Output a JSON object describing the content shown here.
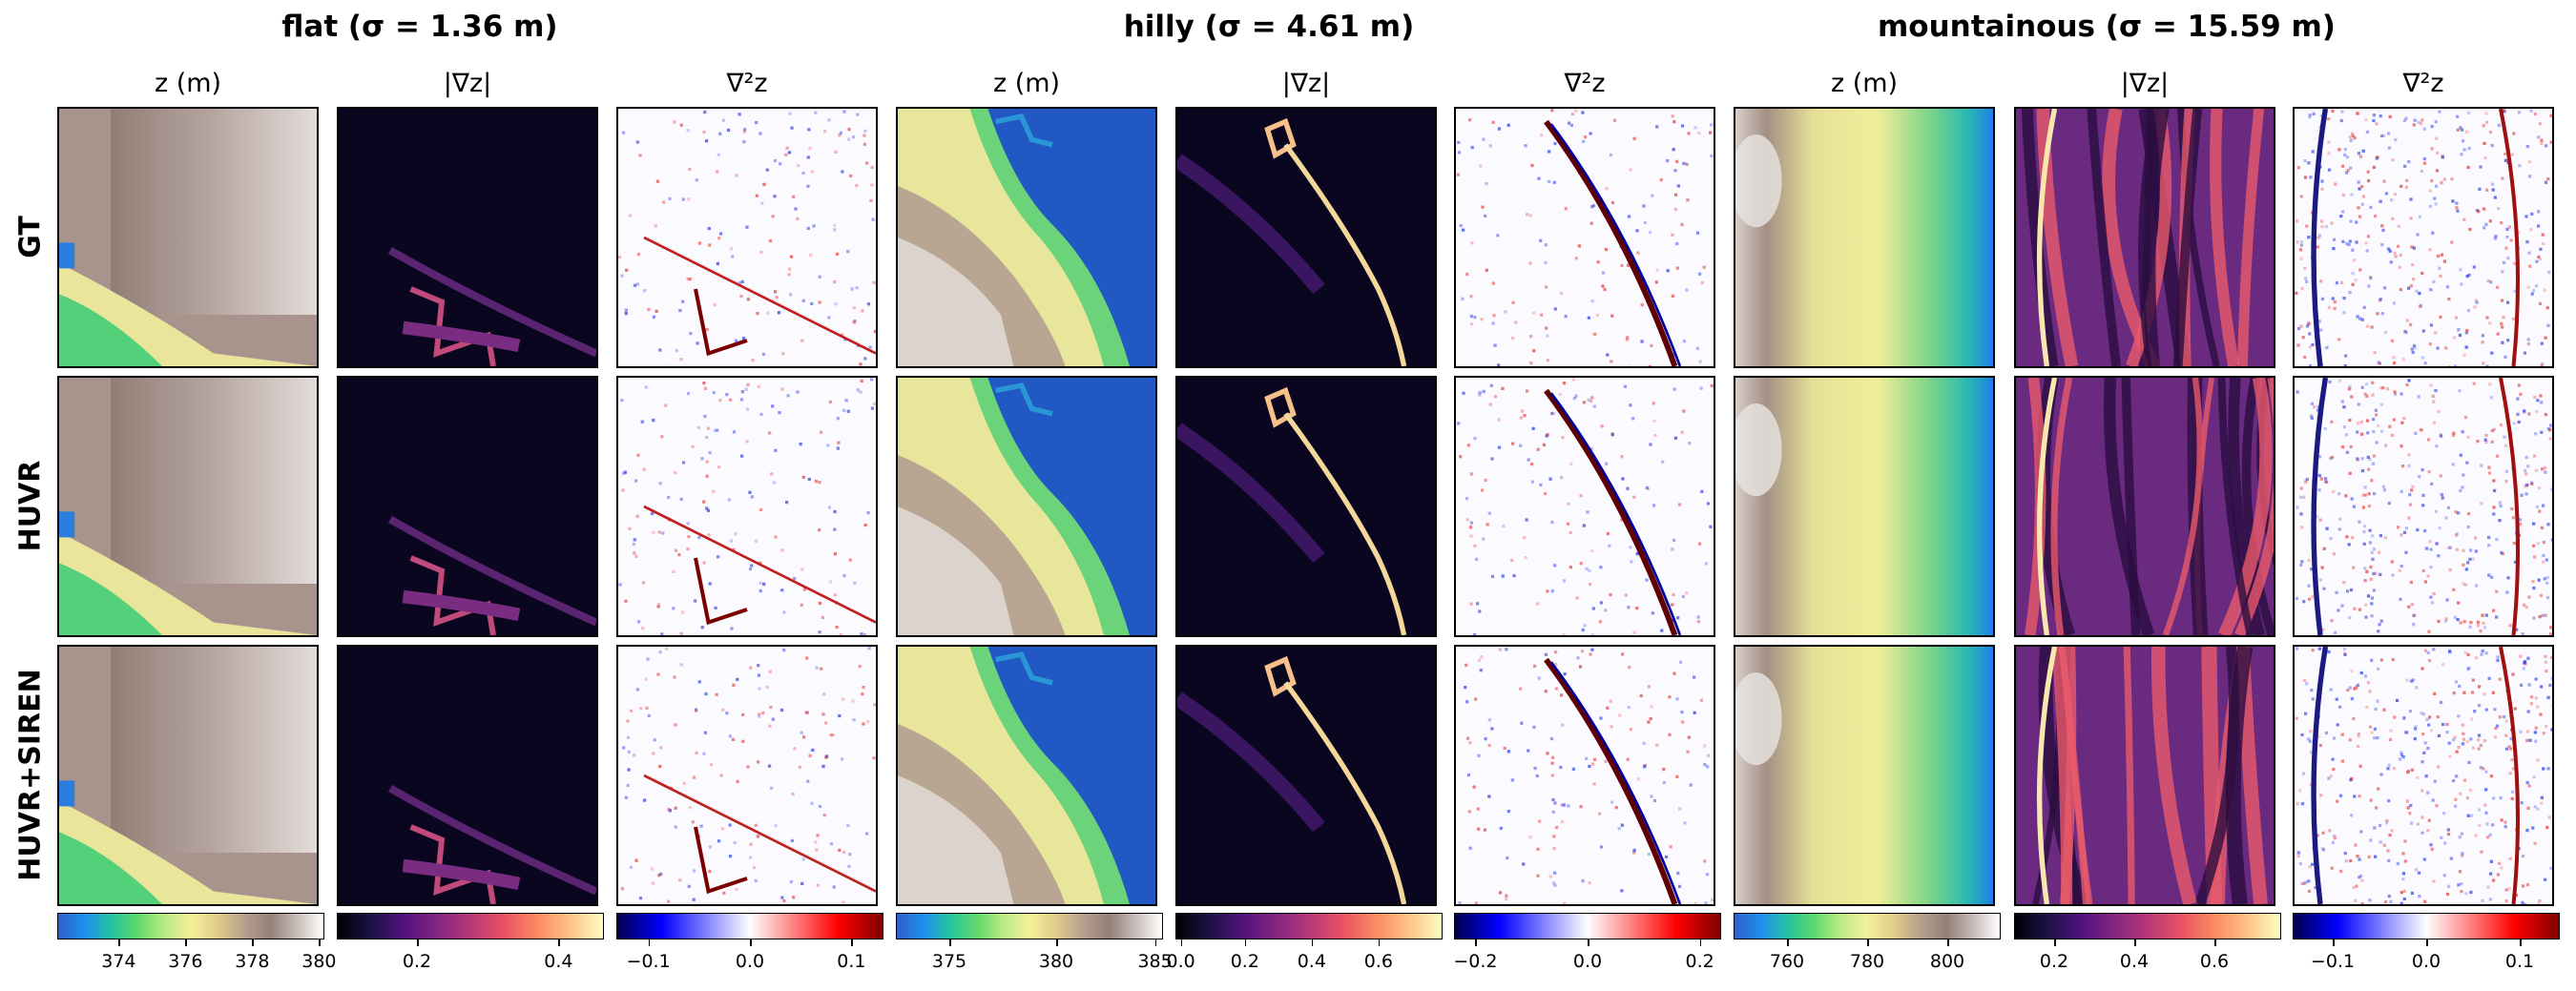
{
  "groups": [
    {
      "id": "flat",
      "title": "flat (σ = 1.36 m)"
    },
    {
      "id": "hilly",
      "title": "hilly (σ = 4.61 m)"
    },
    {
      "id": "mountainous",
      "title": "mountainous (σ = 15.59 m)"
    }
  ],
  "column_titles": [
    "z (m)",
    "|∇z|",
    "∇²z"
  ],
  "rows": [
    "GT",
    "HUVR",
    "HUVR+SIREN"
  ],
  "colorbars": [
    {
      "colormap": "terrain",
      "ticks": [
        "374",
        "376",
        "378",
        "380"
      ]
    },
    {
      "colormap": "magma",
      "ticks": [
        "0.2",
        "0.4"
      ]
    },
    {
      "colormap": "seismic",
      "ticks": [
        "−0.1",
        "0.0",
        "0.1"
      ]
    },
    {
      "colormap": "terrain",
      "ticks": [
        "375",
        "380",
        "385"
      ]
    },
    {
      "colormap": "magma",
      "ticks": [
        "0.0",
        "0.2",
        "0.4",
        "0.6"
      ]
    },
    {
      "colormap": "seismic",
      "ticks": [
        "−0.2",
        "0.0",
        "0.2"
      ]
    },
    {
      "colormap": "terrain",
      "ticks": [
        "760",
        "780",
        "800"
      ]
    },
    {
      "colormap": "magma",
      "ticks": [
        "0.2",
        "0.4",
        "0.6"
      ]
    },
    {
      "colormap": "seismic",
      "ticks": [
        "−0.1",
        "0.0",
        "0.1"
      ]
    }
  ],
  "colors": {
    "terrain_low": "#2f5fc8",
    "terrain_mid": "#f4f19a",
    "terrain_high": "#ffffff",
    "magma_low": "#000004",
    "magma_high": "#fcfdbf",
    "seismic_low": "#00004c",
    "seismic_high": "#800000"
  }
}
